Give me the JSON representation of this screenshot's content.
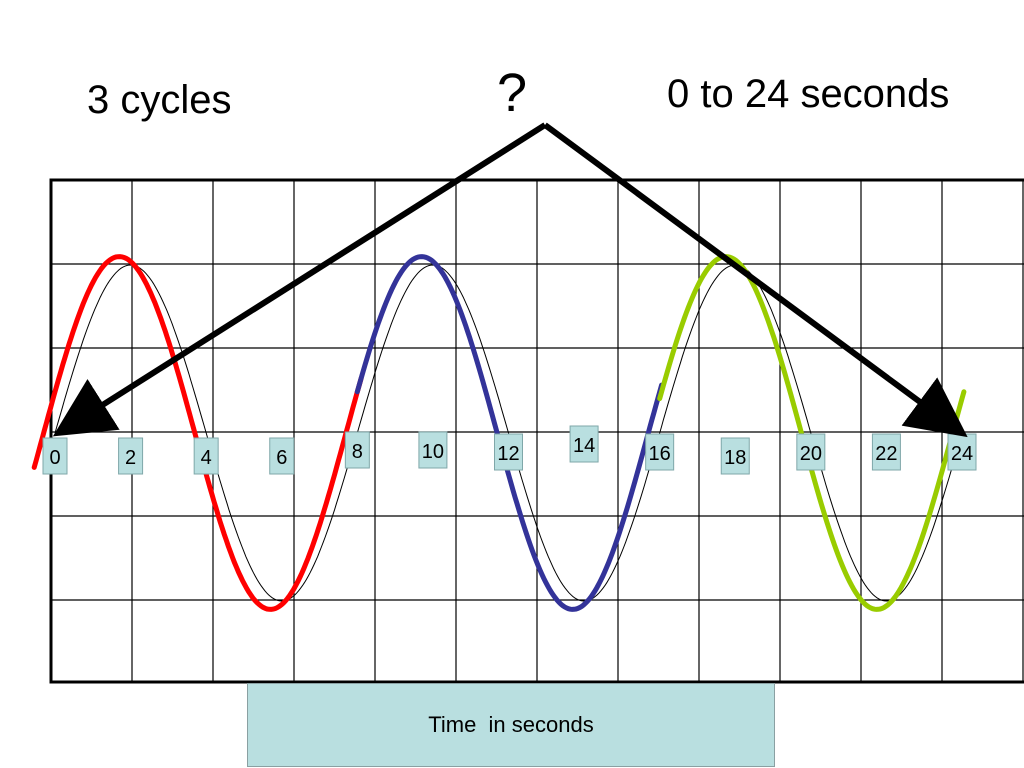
{
  "titles": {
    "left": "3 cycles",
    "mid": "?",
    "right": "0 to 24 seconds"
  },
  "x_axis_title": "Time  in seconds",
  "tick_labels": [
    "0",
    "2",
    "4",
    "6",
    "8",
    "10",
    "12",
    "14",
    "16",
    "18",
    "20",
    "22",
    "24"
  ],
  "colors": {
    "cycle1": "#ff0000",
    "cycle2": "#333399",
    "cycle3": "#99cc00",
    "reference_wave": "#000000",
    "label_fill": "#b9dfe0",
    "arrow": "#000000"
  },
  "chart_data": {
    "type": "line",
    "x_range": [
      0,
      24
    ],
    "cycles": 3,
    "period_seconds": 8,
    "series": [
      {
        "segment": "cycle1",
        "x_start": 0,
        "x_end": 8
      },
      {
        "segment": "cycle2",
        "x_start": 8,
        "x_end": 16
      },
      {
        "segment": "cycle3",
        "x_start": 16,
        "x_end": 24
      }
    ],
    "grid": true
  }
}
